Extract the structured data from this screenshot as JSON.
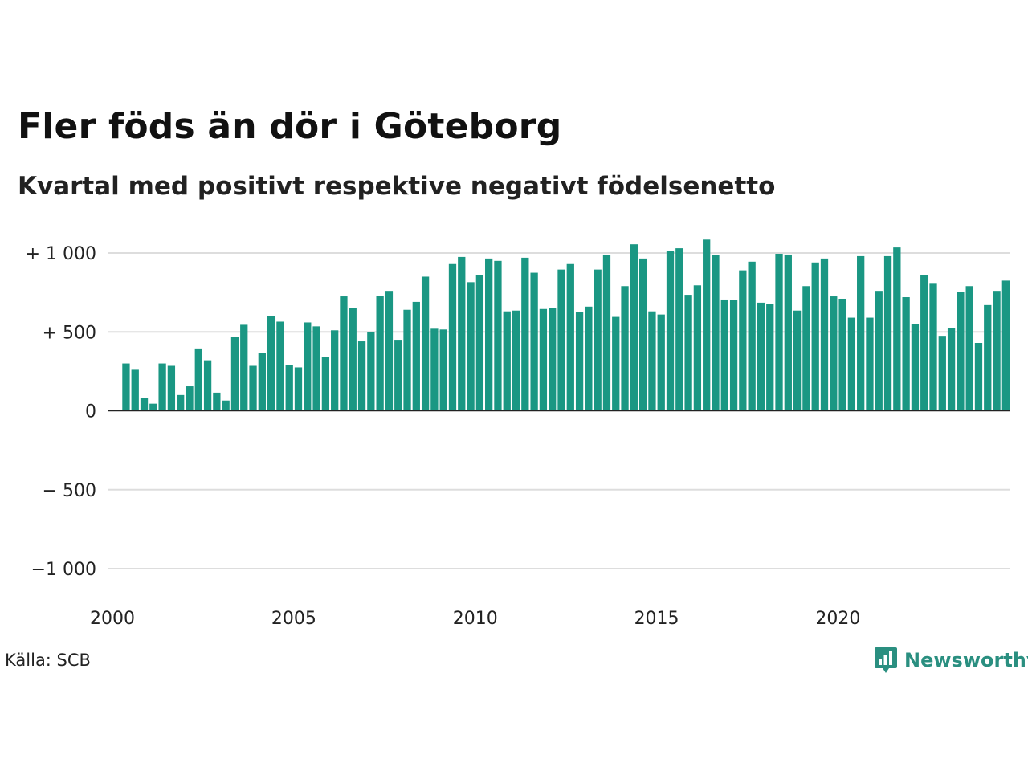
{
  "header": {
    "title": "Fler föds än dör i Göteborg",
    "subtitle": "Kvartal med positivt respektive negativt födelsenetto"
  },
  "footer": {
    "source": "Källa: SCB",
    "brand": "Newsworthy"
  },
  "colors": {
    "bar": "#1a9783",
    "zero_line": "#222222",
    "grid": "#dddddd",
    "brand": "#2a8f80"
  },
  "icons": {
    "brand_logo": "newsworthy-logo-icon"
  },
  "chart_data": {
    "type": "bar",
    "title": "Fler föds än dör i Göteborg",
    "subtitle": "Kvartal med positivt respektive negativt födelsenetto",
    "x_start": 2000,
    "x_end": 2025,
    "xlim": [
      2000,
      2024.75
    ],
    "ylim": [
      -1000,
      1000
    ],
    "y_ticks": [
      {
        "value": 1000,
        "label": "+ 1 000"
      },
      {
        "value": 500,
        "label": "+   500"
      },
      {
        "value": 0,
        "label": "0"
      },
      {
        "value": -500,
        "label": "−  500"
      },
      {
        "value": -1000,
        "label": "−1 000"
      }
    ],
    "x_ticks": [
      {
        "value": 2000,
        "label": "2000"
      },
      {
        "value": 2005,
        "label": "2005"
      },
      {
        "value": 2010,
        "label": "2010"
      },
      {
        "value": 2015,
        "label": "2015"
      },
      {
        "value": 2020,
        "label": "2020"
      }
    ],
    "grid": true,
    "legend": "none",
    "series": [
      {
        "values": [
          5,
          300,
          260,
          80,
          45,
          300,
          285,
          100,
          155,
          395,
          320,
          115,
          65,
          470,
          545,
          285,
          365,
          600,
          565,
          290,
          275,
          560,
          535,
          340,
          510,
          725,
          650,
          440,
          500,
          730,
          760,
          450,
          640,
          690,
          850,
          520,
          515,
          930,
          975,
          815,
          860,
          965,
          950,
          630,
          635,
          970,
          875,
          645,
          650,
          895,
          930,
          625,
          660,
          895,
          985,
          595,
          790,
          1055,
          965,
          630,
          610,
          1015,
          1030,
          735,
          795,
          1085,
          985,
          705,
          700,
          890,
          945,
          685,
          675,
          995,
          990,
          635,
          790,
          940,
          965,
          725,
          710,
          590,
          980,
          590,
          760,
          980,
          1035,
          720,
          550,
          860,
          810,
          475,
          525,
          755,
          790,
          430,
          670,
          760,
          825
        ]
      }
    ]
  }
}
